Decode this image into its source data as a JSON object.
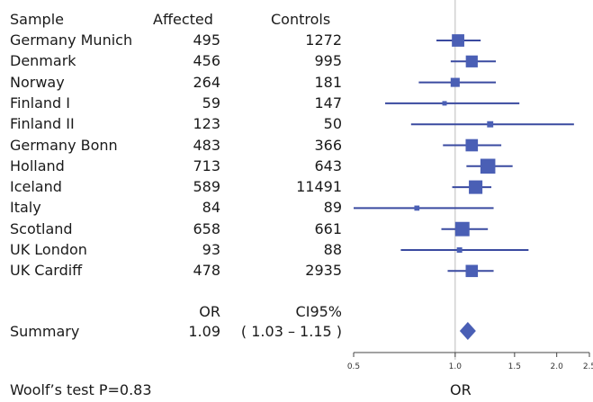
{
  "chart_data": {
    "type": "forest",
    "columns": {
      "sample": "Sample",
      "affected": "Affected",
      "controls": "Controls"
    },
    "rows": [
      {
        "sample": "Germany Munich",
        "affected": "495",
        "controls": "1272",
        "or": 1.02,
        "ci": [
          0.88,
          1.19
        ]
      },
      {
        "sample": "Denmark",
        "affected": "456",
        "controls": "995",
        "or": 1.12,
        "ci": [
          0.97,
          1.32
        ]
      },
      {
        "sample": "Norway",
        "affected": "264",
        "controls": "181",
        "or": 1.0,
        "ci": [
          0.78,
          1.32
        ]
      },
      {
        "sample": "Finland I",
        "affected": "59",
        "controls": "147",
        "or": 0.93,
        "ci": [
          0.62,
          1.55
        ]
      },
      {
        "sample": "Finland II",
        "affected": "123",
        "controls": "50",
        "or": 1.27,
        "ci": [
          0.74,
          2.25
        ]
      },
      {
        "sample": "Germany Bonn",
        "affected": "483",
        "controls": "366",
        "or": 1.12,
        "ci": [
          0.92,
          1.37
        ]
      },
      {
        "sample": "Holland",
        "affected": "713",
        "controls": "643",
        "or": 1.25,
        "ci": [
          1.08,
          1.48
        ]
      },
      {
        "sample": "Iceland",
        "affected": "589",
        "controls": "11491",
        "or": 1.15,
        "ci": [
          0.98,
          1.28
        ]
      },
      {
        "sample": "Italy",
        "affected": "84",
        "controls": "89",
        "or": 0.77,
        "ci": [
          0.5,
          1.3
        ]
      },
      {
        "sample": "Scotland",
        "affected": "658",
        "controls": "661",
        "or": 1.05,
        "ci": [
          0.91,
          1.25
        ]
      },
      {
        "sample": "UK London",
        "affected": "93",
        "controls": "88",
        "or": 1.03,
        "ci": [
          0.69,
          1.65
        ]
      },
      {
        "sample": "UK Cardiff",
        "affected": "478",
        "controls": "2935",
        "or": 1.12,
        "ci": [
          0.95,
          1.3
        ]
      }
    ],
    "summary": {
      "label": "Summary",
      "or_header": "OR",
      "ci_header": "CI95%",
      "or_text": "1.09",
      "ci_text": "( 1.03 – 1.15 )",
      "or": 1.09,
      "ci": [
        1.03,
        1.15
      ]
    },
    "x_axis": {
      "label": "OR",
      "scale": "log",
      "range": [
        0.5,
        2.5
      ],
      "ticks": [
        0.5,
        1.0,
        1.5,
        2.0,
        2.5
      ],
      "tick_labels": [
        "0.5",
        "1.0",
        "1.5",
        "2.0",
        "2.5"
      ],
      "reference_line": 1.0
    },
    "footnote": "Woolf’s test P=0.83",
    "colors": {
      "marker": "#4a5fb5",
      "line": "#3a4aa0",
      "reference": "#bbbbbb"
    }
  }
}
